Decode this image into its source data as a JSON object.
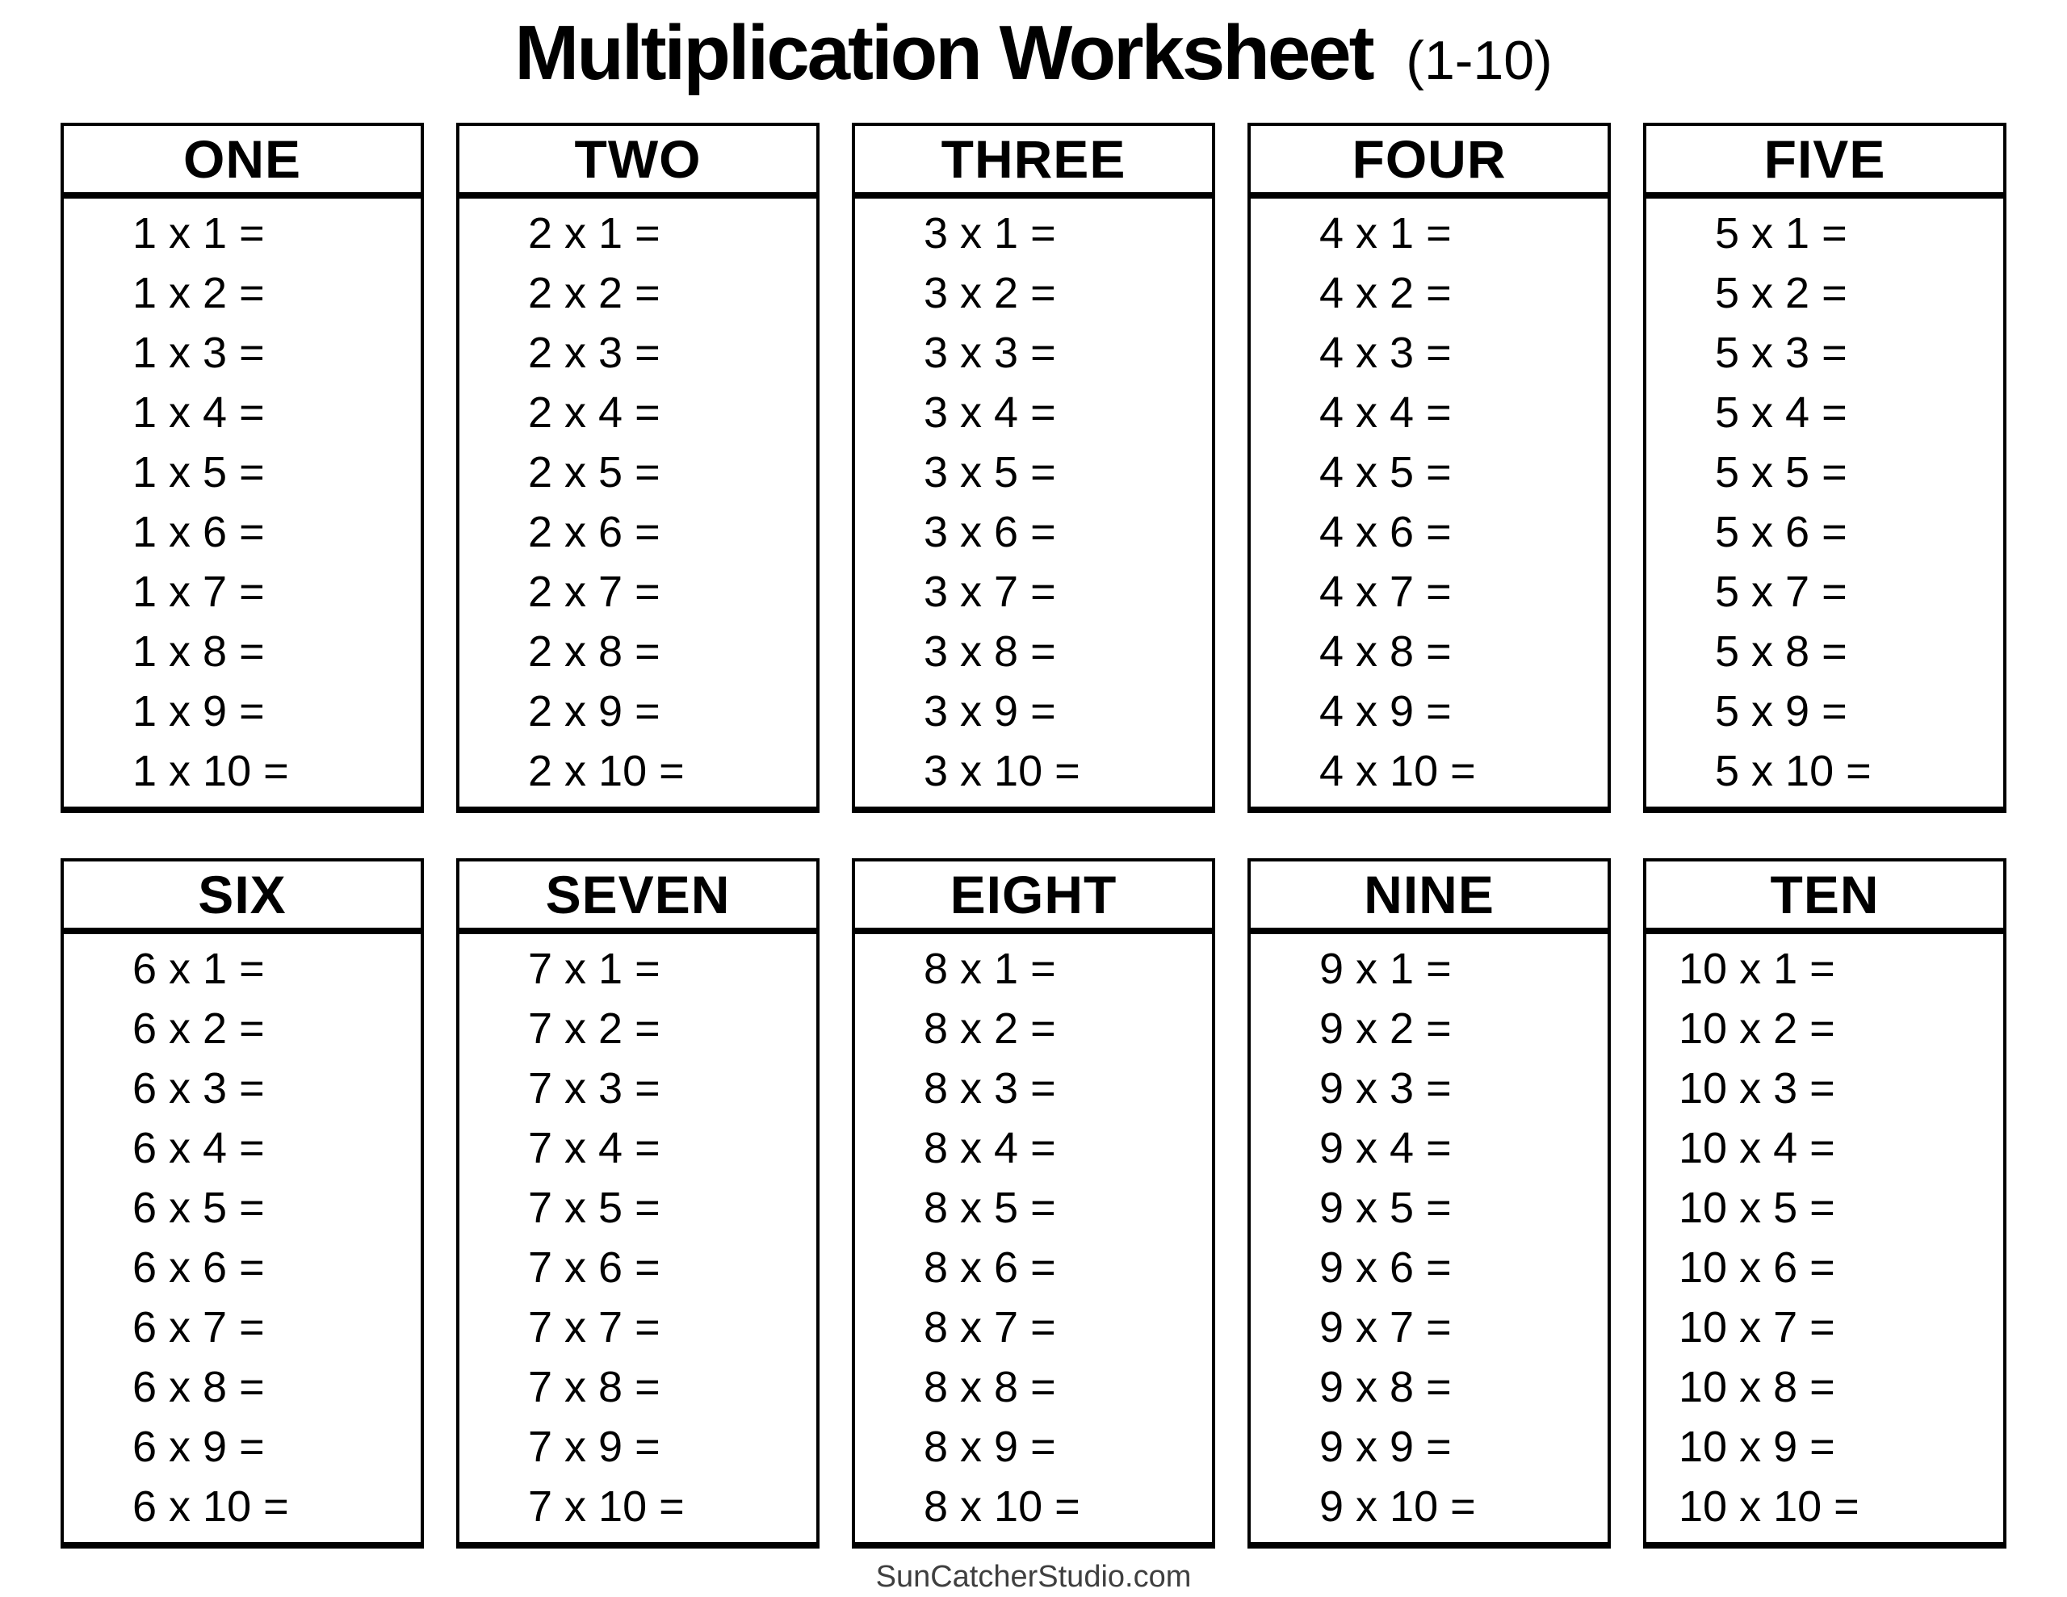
{
  "title": {
    "main": "Multiplication Worksheet",
    "suffix": "(1-10)"
  },
  "footer": {
    "text": "SunCatcherStudio.com"
  },
  "colors": {
    "page_background": "#ffffff",
    "text": "#000000",
    "border": "#000000",
    "footer_text": "#3f3f3f"
  },
  "tables": [
    {
      "header": "ONE",
      "problems": [
        "1 x 1 =",
        "1 x 2 =",
        "1 x 3 =",
        "1 x 4 =",
        "1 x 5 =",
        "1 x 6 =",
        "1 x 7 =",
        "1 x 8 =",
        "1 x 9 =",
        "1 x 10 ="
      ]
    },
    {
      "header": "TWO",
      "problems": [
        "2 x 1 =",
        "2 x 2 =",
        "2 x 3 =",
        "2 x 4 =",
        "2 x 5 =",
        "2 x 6 =",
        "2 x 7 =",
        "2 x 8 =",
        "2 x 9 =",
        "2 x 10 ="
      ]
    },
    {
      "header": "THREE",
      "problems": [
        "3 x 1 =",
        "3 x 2 =",
        "3 x 3 =",
        "3 x 4 =",
        "3 x 5 =",
        "3 x 6 =",
        "3 x 7 =",
        "3 x 8 =",
        "3 x 9 =",
        "3 x 10 ="
      ]
    },
    {
      "header": "FOUR",
      "problems": [
        "4 x 1 =",
        "4 x 2 =",
        "4 x 3 =",
        "4 x 4 =",
        "4 x 5 =",
        "4 x 6 =",
        "4 x 7 =",
        "4 x 8 =",
        "4 x 9 =",
        "4 x 10 ="
      ]
    },
    {
      "header": "FIVE",
      "problems": [
        "5 x 1 =",
        "5 x 2 =",
        "5 x 3 =",
        "5 x 4 =",
        "5 x 5 =",
        "5 x 6 =",
        "5 x 7 =",
        "5 x 8 =",
        "5 x 9 =",
        "5 x 10 ="
      ]
    },
    {
      "header": "SIX",
      "problems": [
        "6 x 1 =",
        "6 x 2 =",
        "6 x 3 =",
        "6 x 4 =",
        "6 x 5 =",
        "6 x 6 =",
        "6 x 7 =",
        "6 x 8 =",
        "6 x 9 =",
        "6 x 10 ="
      ]
    },
    {
      "header": "SEVEN",
      "problems": [
        "7 x 1 =",
        "7 x 2 =",
        "7 x 3 =",
        "7 x 4 =",
        "7 x 5 =",
        "7 x 6 =",
        "7 x 7 =",
        "7 x 8 =",
        "7 x 9 =",
        "7 x 10 ="
      ]
    },
    {
      "header": "EIGHT",
      "problems": [
        "8 x 1 =",
        "8 x 2 =",
        "8 x 3 =",
        "8 x 4 =",
        "8 x 5 =",
        "8 x 6 =",
        "8 x 7 =",
        "8 x 8 =",
        "8 x 9 =",
        "8 x 10 ="
      ]
    },
    {
      "header": "NINE",
      "problems": [
        "9 x 1 =",
        "9 x 2 =",
        "9 x 3 =",
        "9 x 4 =",
        "9 x 5 =",
        "9 x 6 =",
        "9 x 7 =",
        "9 x 8 =",
        "9 x 9 =",
        "9 x 10 ="
      ]
    },
    {
      "header": "TEN",
      "problems": [
        "10 x 1 =",
        "10 x 2 =",
        "10 x 3 =",
        "10 x 4 =",
        "10 x 5 =",
        "10 x 6 =",
        "10 x 7 =",
        "10 x 8 =",
        "10 x 9 =",
        "10 x 10 ="
      ]
    }
  ]
}
